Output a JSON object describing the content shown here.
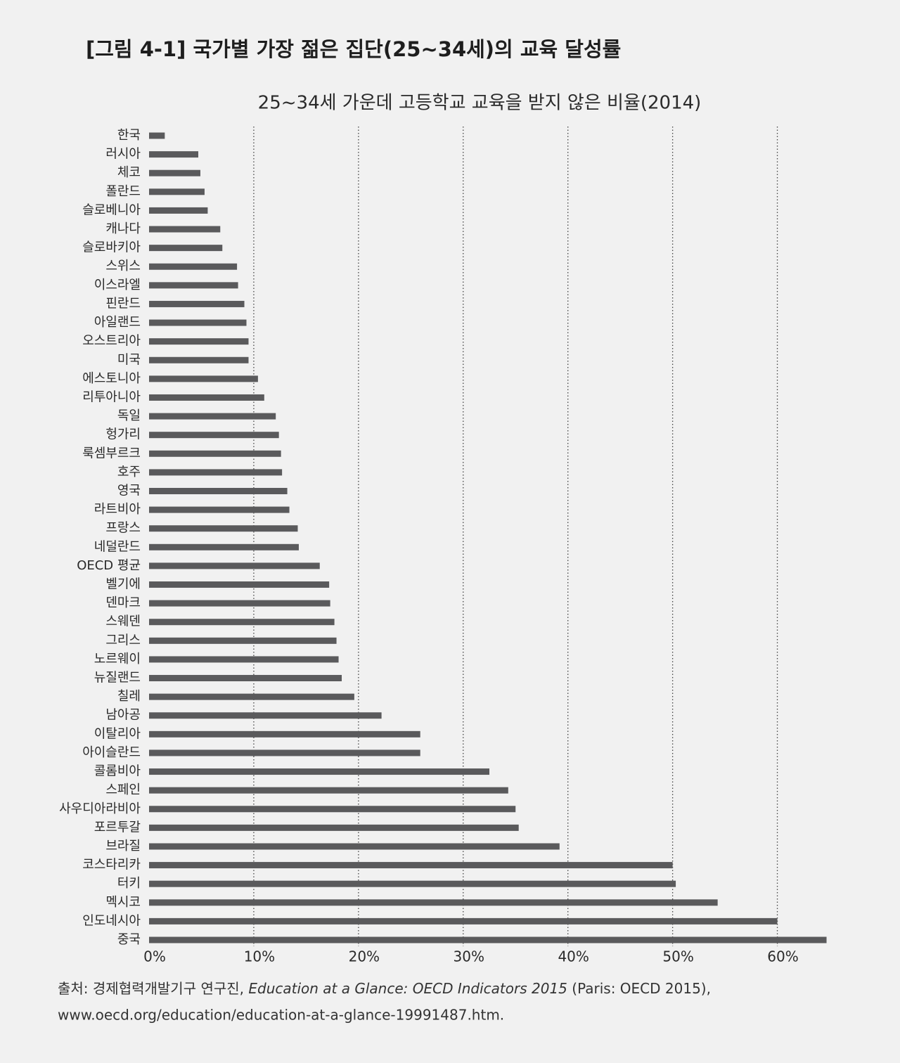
{
  "chart_data": {
    "type": "bar",
    "orientation": "horizontal",
    "title": "[그림 4-1]  국가별 가장 젊은 집단(25~34세)의 교육 달성률",
    "subtitle": "25~34세 가운데 고등학교 교육을 받지 않은 비율(2014)",
    "categories": [
      "한국",
      "러시아",
      "체코",
      "폴란드",
      "슬로베니아",
      "캐나다",
      "슬로바키아",
      "스위스",
      "이스라엘",
      "핀란드",
      "아일랜드",
      "오스트리아",
      "미국",
      "에스토니아",
      "리투아니아",
      "독일",
      "헝가리",
      "룩셈부르크",
      "호주",
      "영국",
      "라트비아",
      "프랑스",
      "네덜란드",
      "OECD 평균",
      "벨기에",
      "덴마크",
      "스웨덴",
      "그리스",
      "노르웨이",
      "뉴질랜드",
      "칠레",
      "남아공",
      "이탈리아",
      "아이슬란드",
      "콜롬비아",
      "스페인",
      "사우디아라비아",
      "포르투갈",
      "브라질",
      "코스타리카",
      "터키",
      "멕시코",
      "인도네시아",
      "중국"
    ],
    "values": [
      1.5,
      4.7,
      4.9,
      5.3,
      5.6,
      6.8,
      7,
      8.4,
      8.5,
      9.1,
      9.3,
      9.5,
      9.5,
      10.4,
      11,
      12.1,
      12.4,
      12.6,
      12.7,
      13.2,
      13.4,
      14.2,
      14.3,
      16.3,
      17.2,
      17.3,
      17.7,
      17.9,
      18.1,
      18.4,
      19.6,
      22.2,
      25.9,
      25.9,
      32.5,
      34.3,
      35,
      35.3,
      39.2,
      50,
      50.3,
      54.3,
      60,
      64.7
    ],
    "color": "#5a5a5c",
    "xlim": [
      0,
      65
    ],
    "xticks": [
      {
        "value": 0,
        "label": "0%"
      },
      {
        "value": 10,
        "label": "10%"
      },
      {
        "value": 20,
        "label": "20%"
      },
      {
        "value": 30,
        "label": "30%"
      },
      {
        "value": 40,
        "label": "40%"
      },
      {
        "value": 50,
        "label": "50%"
      },
      {
        "value": 60,
        "label": "60%"
      }
    ],
    "grid": true,
    "source": {
      "prefix": "출처: 경제협력개발기구 연구진, ",
      "title": "Education at a Glance: OECD Indicators 2015",
      "suffix": " (Paris: OECD 2015),",
      "url": "www.oecd.org/education/education-at-a-glance-19991487.htm."
    }
  }
}
